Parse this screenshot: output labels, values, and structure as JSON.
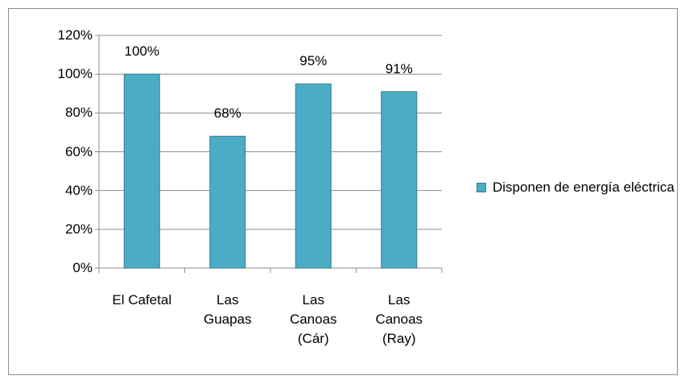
{
  "chart_data": {
    "type": "bar",
    "categories": [
      "El Cafetal",
      "Las\nGuapas",
      "Las\nCanoas\n(Cár)",
      "Las\nCanoas\n(Ray)"
    ],
    "series": [
      {
        "name": "Disponen de energía eléctrica",
        "color": "#4bacc6",
        "values": [
          100,
          68,
          95,
          91
        ],
        "value_labels": [
          "100%",
          "68%",
          "95%",
          "91%"
        ]
      }
    ],
    "ylim": [
      0,
      120
    ],
    "yticks": [
      {
        "value": 0,
        "label": "0%"
      },
      {
        "value": 20,
        "label": "20%"
      },
      {
        "value": 40,
        "label": "40%"
      },
      {
        "value": 60,
        "label": "60%"
      },
      {
        "value": 80,
        "label": "80%"
      },
      {
        "value": 100,
        "label": "100%"
      },
      {
        "value": 120,
        "label": "120%"
      }
    ],
    "grid": true,
    "legend": "right"
  }
}
